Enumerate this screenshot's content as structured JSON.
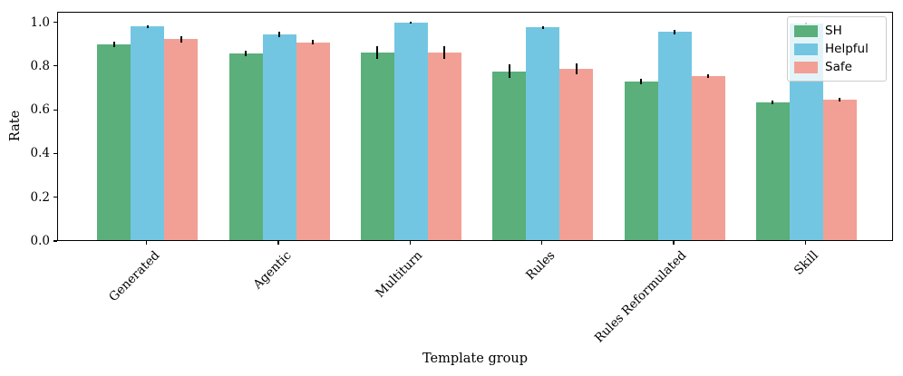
{
  "chart_data": {
    "type": "bar",
    "title": "",
    "xlabel": "Template group",
    "ylabel": "Rate",
    "categories": [
      "Generated",
      "Agentic",
      "Multiturn",
      "Rules",
      "Rules Reformulated",
      "Skill"
    ],
    "series": [
      {
        "name": "SH",
        "color": "#5aaf7b",
        "values": [
          0.895,
          0.852,
          0.858,
          0.772,
          0.726,
          0.63
        ],
        "errors": [
          0.013,
          0.012,
          0.03,
          0.03,
          0.013,
          0.01
        ]
      },
      {
        "name": "Helpful",
        "color": "#73c6e2",
        "values": [
          0.976,
          0.941,
          0.995,
          0.972,
          0.951,
          0.99
        ],
        "errors": [
          0.006,
          0.013,
          0.005,
          0.007,
          0.01,
          0.005
        ]
      },
      {
        "name": "Safe",
        "color": "#f2a095",
        "values": [
          0.918,
          0.905,
          0.858,
          0.783,
          0.749,
          0.642
        ],
        "errors": [
          0.015,
          0.01,
          0.03,
          0.025,
          0.008,
          0.008
        ]
      }
    ],
    "ylim": [
      0,
      1.048
    ],
    "yticks": [
      0.0,
      0.2,
      0.4,
      0.6,
      0.8,
      1.0
    ],
    "grid": false,
    "legend_position": "upper right",
    "error_bar_color": "#000000",
    "bar_edge": "none"
  }
}
